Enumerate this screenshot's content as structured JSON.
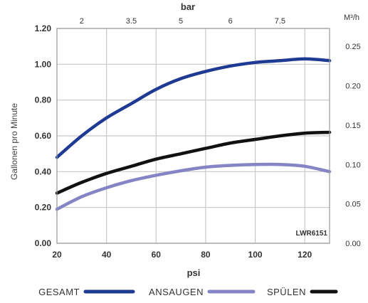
{
  "chart_data": {
    "type": "line",
    "x_bottom": {
      "label": "psi",
      "range": [
        20,
        130
      ],
      "ticks": [
        20,
        40,
        60,
        80,
        100,
        120
      ],
      "tick_labels": [
        "20",
        "40",
        "60",
        "80",
        "100",
        "120"
      ]
    },
    "x_top": {
      "label": "bar",
      "ticks": [
        2,
        3.5,
        5,
        6,
        7.5
      ],
      "tick_labels": [
        "2",
        "3.5",
        "5",
        "6",
        "7.5"
      ],
      "tick_positions_psi": [
        30,
        50,
        70,
        90,
        110
      ]
    },
    "y_left": {
      "label": "Gallonen pro Minute",
      "range": [
        0,
        1.2
      ],
      "ticks": [
        0,
        0.2,
        0.4,
        0.6,
        0.8,
        1.0,
        1.2
      ],
      "tick_labels": [
        "0.00",
        "0.20",
        "0.40",
        "0.60",
        "0.80",
        "1.00",
        "1.20"
      ]
    },
    "y_right": {
      "label": "M³/h",
      "tick_labels": [
        "0.00",
        "0.05",
        "0.10",
        "0.15",
        "0.20",
        "0.25"
      ],
      "tick_values_gpm": [
        0,
        0.22,
        0.44,
        0.66,
        0.88,
        1.1
      ]
    },
    "annotation": "LWR6151",
    "grid": true,
    "legend_position": "bottom",
    "series": [
      {
        "name": "GESAMT",
        "color": "#1f3a93",
        "x": [
          20,
          30,
          40,
          50,
          60,
          70,
          80,
          90,
          100,
          110,
          120,
          130
        ],
        "y": [
          0.48,
          0.6,
          0.7,
          0.78,
          0.86,
          0.92,
          0.96,
          0.99,
          1.01,
          1.02,
          1.03,
          1.02
        ]
      },
      {
        "name": "ANSAUGEN",
        "color": "#8585c6",
        "x": [
          20,
          30,
          40,
          50,
          60,
          70,
          80,
          90,
          100,
          110,
          120,
          130
        ],
        "y": [
          0.19,
          0.26,
          0.31,
          0.35,
          0.38,
          0.405,
          0.425,
          0.435,
          0.44,
          0.44,
          0.43,
          0.4
        ]
      },
      {
        "name": "SPÜLEN",
        "color": "#111111",
        "x": [
          20,
          30,
          40,
          50,
          60,
          70,
          80,
          90,
          100,
          110,
          120,
          130
        ],
        "y": [
          0.28,
          0.34,
          0.39,
          0.43,
          0.47,
          0.5,
          0.53,
          0.56,
          0.58,
          0.6,
          0.615,
          0.62
        ]
      }
    ]
  }
}
